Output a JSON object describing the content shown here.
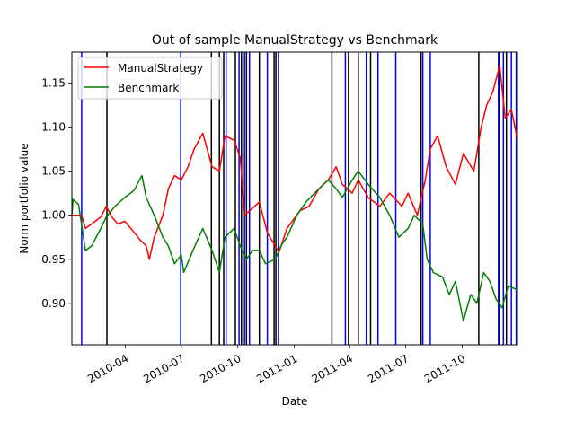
{
  "chart_data": {
    "type": "line",
    "title": "Out of sample ManualStrategy vs Benchmark",
    "xlabel": "Date",
    "ylabel": "Norm portfolio value",
    "xlim": [
      "2010-01-04",
      "2011-12-30"
    ],
    "ylim": [
      0.853,
      1.185
    ],
    "x_ticks": [
      "2010-04-01",
      "2010-07-01",
      "2010-10-01",
      "2011-01-01",
      "2011-04-01",
      "2011-07-01",
      "2011-10-01"
    ],
    "x_tick_labels": [
      "2010-04",
      "2010-07",
      "2010-10",
      "2011-01",
      "2011-04",
      "2011-07",
      "2011-10"
    ],
    "y_ticks": [
      0.9,
      0.95,
      1.0,
      1.05,
      1.1,
      1.15
    ],
    "y_tick_labels": [
      "0.90",
      "0.95",
      "1.00",
      "1.05",
      "1.10",
      "1.15"
    ],
    "legend_position": "top-left",
    "colors": {
      "manual": "#ff0000",
      "benchmark": "#008000",
      "long_entry": "#0000ff",
      "short_entry": "#000000"
    },
    "series": [
      {
        "name": "ManualStrategy",
        "color": "#ff0000",
        "points": [
          [
            "2010-01-04",
            1.0
          ],
          [
            "2010-01-20",
            1.0
          ],
          [
            "2010-01-26",
            0.985
          ],
          [
            "2010-02-05",
            0.99
          ],
          [
            "2010-02-20",
            0.998
          ],
          [
            "2010-03-01",
            1.01
          ],
          [
            "2010-03-10",
            0.998
          ],
          [
            "2010-03-20",
            0.99
          ],
          [
            "2010-03-31",
            0.993
          ],
          [
            "2010-04-10",
            0.985
          ],
          [
            "2010-04-25",
            0.972
          ],
          [
            "2010-05-05",
            0.965
          ],
          [
            "2010-05-10",
            0.95
          ],
          [
            "2010-05-18",
            0.975
          ],
          [
            "2010-06-01",
            1.0
          ],
          [
            "2010-06-10",
            1.03
          ],
          [
            "2010-06-20",
            1.045
          ],
          [
            "2010-07-01",
            1.04
          ],
          [
            "2010-07-12",
            1.055
          ],
          [
            "2010-07-22",
            1.075
          ],
          [
            "2010-08-05",
            1.093
          ],
          [
            "2010-08-20",
            1.055
          ],
          [
            "2010-09-01",
            1.05
          ],
          [
            "2010-09-10",
            1.09
          ],
          [
            "2010-09-25",
            1.085
          ],
          [
            "2010-10-05",
            1.065
          ],
          [
            "2010-10-12",
            1.0
          ],
          [
            "2010-10-25",
            1.008
          ],
          [
            "2010-11-05",
            1.015
          ],
          [
            "2010-11-18",
            0.98
          ],
          [
            "2010-12-01",
            0.965
          ],
          [
            "2010-12-07",
            0.958
          ],
          [
            "2010-12-20",
            0.985
          ],
          [
            "2011-01-10",
            1.005
          ],
          [
            "2011-01-25",
            1.01
          ],
          [
            "2011-02-10",
            1.03
          ],
          [
            "2011-02-25",
            1.04
          ],
          [
            "2011-03-10",
            1.055
          ],
          [
            "2011-03-20",
            1.035
          ],
          [
            "2011-04-05",
            1.025
          ],
          [
            "2011-04-15",
            1.04
          ],
          [
            "2011-05-01",
            1.02
          ],
          [
            "2011-05-20",
            1.01
          ],
          [
            "2011-06-05",
            1.025
          ],
          [
            "2011-06-25",
            1.01
          ],
          [
            "2011-07-05",
            1.025
          ],
          [
            "2011-07-20",
            1.0
          ],
          [
            "2011-08-02",
            1.04
          ],
          [
            "2011-08-10",
            1.075
          ],
          [
            "2011-08-22",
            1.09
          ],
          [
            "2011-09-05",
            1.055
          ],
          [
            "2011-09-20",
            1.035
          ],
          [
            "2011-10-03",
            1.07
          ],
          [
            "2011-10-20",
            1.05
          ],
          [
            "2011-11-01",
            1.1
          ],
          [
            "2011-11-10",
            1.125
          ],
          [
            "2011-11-20",
            1.14
          ],
          [
            "2011-12-01",
            1.17
          ],
          [
            "2011-12-10",
            1.11
          ],
          [
            "2011-12-20",
            1.12
          ],
          [
            "2011-12-30",
            1.085
          ]
        ]
      },
      {
        "name": "Benchmark",
        "color": "#008000",
        "points": [
          [
            "2010-01-04",
            1.0
          ],
          [
            "2010-01-06",
            1.018
          ],
          [
            "2010-01-15",
            1.012
          ],
          [
            "2010-01-26",
            0.96
          ],
          [
            "2010-02-05",
            0.965
          ],
          [
            "2010-02-20",
            0.985
          ],
          [
            "2010-03-01",
            0.998
          ],
          [
            "2010-03-15",
            1.01
          ],
          [
            "2010-03-31",
            1.02
          ],
          [
            "2010-04-15",
            1.028
          ],
          [
            "2010-04-28",
            1.045
          ],
          [
            "2010-05-05",
            1.02
          ],
          [
            "2010-05-18",
            1.0
          ],
          [
            "2010-06-01",
            0.975
          ],
          [
            "2010-06-10",
            0.965
          ],
          [
            "2010-06-20",
            0.945
          ],
          [
            "2010-07-01",
            0.955
          ],
          [
            "2010-07-05",
            0.935
          ],
          [
            "2010-07-20",
            0.96
          ],
          [
            "2010-08-05",
            0.985
          ],
          [
            "2010-08-20",
            0.96
          ],
          [
            "2010-09-01",
            0.935
          ],
          [
            "2010-09-10",
            0.975
          ],
          [
            "2010-09-25",
            0.985
          ],
          [
            "2010-10-05",
            0.965
          ],
          [
            "2010-10-15",
            0.95
          ],
          [
            "2010-10-25",
            0.96
          ],
          [
            "2010-11-05",
            0.96
          ],
          [
            "2010-11-15",
            0.945
          ],
          [
            "2010-12-01",
            0.95
          ],
          [
            "2010-12-10",
            0.965
          ],
          [
            "2010-12-20",
            0.975
          ],
          [
            "2011-01-05",
            1.0
          ],
          [
            "2011-01-20",
            1.015
          ],
          [
            "2011-02-10",
            1.03
          ],
          [
            "2011-02-25",
            1.04
          ],
          [
            "2011-03-10",
            1.03
          ],
          [
            "2011-03-20",
            1.02
          ],
          [
            "2011-04-05",
            1.04
          ],
          [
            "2011-04-15",
            1.05
          ],
          [
            "2011-05-01",
            1.035
          ],
          [
            "2011-05-20",
            1.02
          ],
          [
            "2011-06-05",
            1.0
          ],
          [
            "2011-06-20",
            0.975
          ],
          [
            "2011-07-05",
            0.985
          ],
          [
            "2011-07-15",
            1.0
          ],
          [
            "2011-07-29",
            0.99
          ],
          [
            "2011-08-05",
            0.95
          ],
          [
            "2011-08-15",
            0.935
          ],
          [
            "2011-08-30",
            0.93
          ],
          [
            "2011-09-10",
            0.91
          ],
          [
            "2011-09-20",
            0.925
          ],
          [
            "2011-10-03",
            0.88
          ],
          [
            "2011-10-15",
            0.91
          ],
          [
            "2011-10-25",
            0.9
          ],
          [
            "2011-11-05",
            0.935
          ],
          [
            "2011-11-15",
            0.925
          ],
          [
            "2011-11-25",
            0.905
          ],
          [
            "2011-12-05",
            0.895
          ],
          [
            "2011-12-15",
            0.92
          ],
          [
            "2011-12-30",
            0.915
          ]
        ]
      }
    ],
    "vertical_lines": {
      "long_entry": [
        "2010-01-20",
        "2010-06-30",
        "2010-09-12",
        "2010-10-03",
        "2010-10-12",
        "2010-10-20",
        "2010-11-18",
        "2010-12-06",
        "2011-03-25",
        "2011-04-28",
        "2011-05-17",
        "2011-06-15",
        "2011-07-29",
        "2011-08-10",
        "2011-11-29",
        "2011-12-07",
        "2011-12-20",
        "2011-12-28"
      ],
      "short_entry": [
        "2010-03-02",
        "2010-08-19",
        "2010-09-01",
        "2010-09-08",
        "2010-09-27",
        "2010-10-07",
        "2010-10-15",
        "2010-11-05",
        "2010-11-29",
        "2010-12-02",
        "2011-03-03",
        "2011-03-30",
        "2011-04-15",
        "2011-05-05",
        "2011-07-26",
        "2011-10-28",
        "2011-12-01",
        "2011-12-12"
      ]
    }
  }
}
